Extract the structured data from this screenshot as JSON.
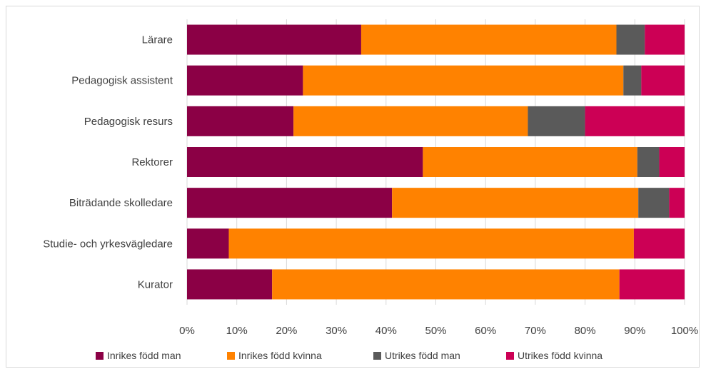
{
  "chart_data": {
    "type": "bar",
    "orientation": "horizontal",
    "stacked": "percent",
    "categories": [
      "Lärare",
      "Pedagogisk assistent",
      "Pedagogisk resurs",
      "Rektorer",
      "Biträdande skolledare",
      "Studie- och yrkesvägledare",
      "Kurator"
    ],
    "series": [
      {
        "name": "Inrikes född man",
        "color": "#8b0045",
        "values": [
          35.0,
          23.3,
          21.4,
          47.4,
          41.2,
          8.4,
          17.1
        ]
      },
      {
        "name": "Inrikes född kvinna",
        "color": "#ff8200",
        "values": [
          51.3,
          64.4,
          47.1,
          43.1,
          49.5,
          81.4,
          69.8
        ]
      },
      {
        "name": "Utrikes född man",
        "color": "#5a5a5a",
        "values": [
          5.7,
          3.6,
          11.5,
          4.4,
          6.2,
          0.0,
          0.0
        ]
      },
      {
        "name": "Utrikes född kvinna",
        "color": "#cc0055",
        "values": [
          8.0,
          8.7,
          20.0,
          5.1,
          3.1,
          10.2,
          13.1
        ]
      }
    ],
    "x_ticks": [
      "0%",
      "10%",
      "20%",
      "30%",
      "40%",
      "50%",
      "60%",
      "70%",
      "80%",
      "90%",
      "100%"
    ],
    "xlim": [
      0,
      100
    ],
    "grid": "vertical",
    "legend_position": "bottom"
  }
}
